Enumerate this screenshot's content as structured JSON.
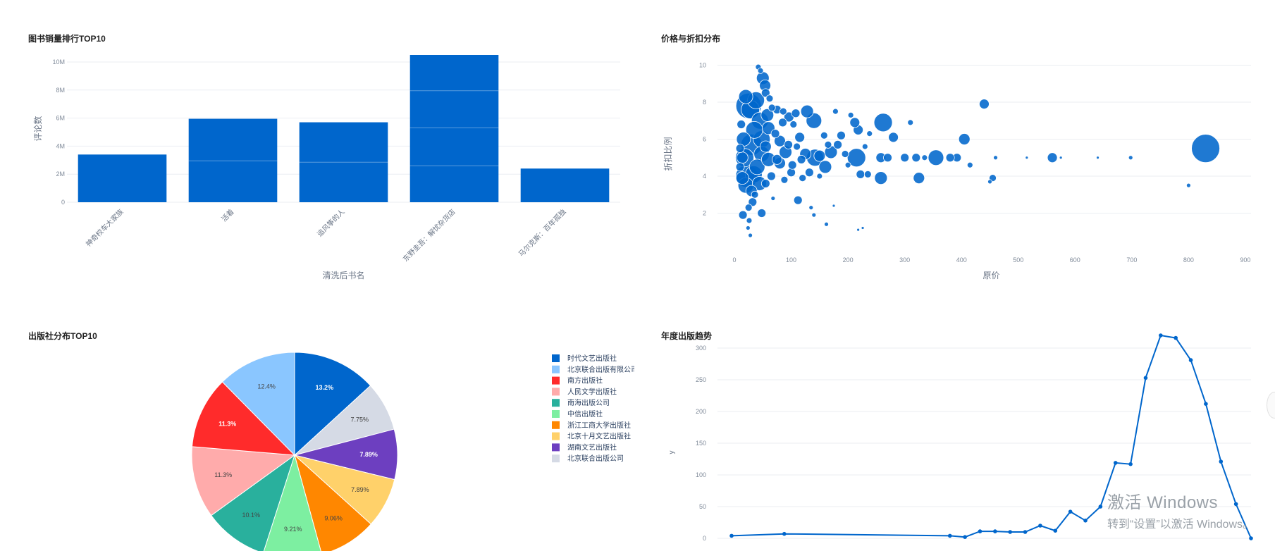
{
  "colors": {
    "primary": "#0066cc",
    "grid": "#ebeef2",
    "axis_text": "#7f8a99"
  },
  "watermark": {
    "line1": "激活 Windows",
    "line2": "转到“设置”以激活 Windows。"
  },
  "chart_data": [
    {
      "id": "top10",
      "type": "bar",
      "title": "图书销量排行TOP10",
      "xlabel": "清洗后书名",
      "ylabel": "评论数",
      "categories": [
        "神奇校车大家族",
        "活着",
        "追风筝的人",
        "东野圭吾：解忧杂货店",
        "马尔克斯：百年孤独"
      ],
      "values": [
        3400000,
        5950000,
        5700000,
        10500000,
        2400000
      ],
      "stack_lines": [
        [],
        [
          2950000
        ],
        [
          2850000
        ],
        [
          7950000,
          5300000,
          2600000
        ],
        []
      ],
      "ylim": [
        0,
        10500000
      ],
      "yticks": [
        0,
        2000000,
        4000000,
        6000000,
        8000000,
        10000000
      ],
      "ytick_labels": [
        "0",
        "2M",
        "4M",
        "6M",
        "8M",
        "10M"
      ],
      "grid": true
    },
    {
      "id": "price",
      "type": "scatter",
      "title": "价格与折扣分布",
      "xlabel": "原价",
      "ylabel": "折扣比例",
      "xlim": [
        -5,
        910
      ],
      "ylim": [
        0,
        10.4
      ],
      "xticks": [
        0,
        100,
        200,
        300,
        400,
        500,
        600,
        700,
        800,
        900
      ],
      "yticks": [
        2,
        4,
        6,
        8,
        10
      ],
      "points": [
        [
          830,
          5.5,
          20
        ],
        [
          440,
          7.9,
          7
        ],
        [
          405,
          6.0,
          8
        ],
        [
          355,
          5.0,
          11
        ],
        [
          325,
          3.9,
          8
        ],
        [
          262,
          6.9,
          13
        ],
        [
          258,
          3.9,
          9
        ],
        [
          258,
          5.0,
          7
        ],
        [
          235,
          4.1,
          5
        ],
        [
          215,
          5.0,
          13
        ],
        [
          222,
          4.1,
          6
        ],
        [
          218,
          6.5,
          7
        ],
        [
          212,
          6.9,
          7
        ],
        [
          140,
          7.0,
          11
        ],
        [
          142,
          5.0,
          12
        ],
        [
          128,
          7.5,
          9
        ],
        [
          125,
          5.2,
          8
        ],
        [
          112,
          2.7,
          6
        ],
        [
          115,
          6.1,
          7
        ],
        [
          90,
          5.3,
          9
        ],
        [
          96,
          7.2,
          7
        ],
        [
          80,
          5.9,
          8
        ],
        [
          80,
          4.7,
          8
        ],
        [
          60,
          6.6,
          9
        ],
        [
          60,
          4.9,
          10
        ],
        [
          58,
          7.3,
          9
        ],
        [
          48,
          6.0,
          12
        ],
        [
          48,
          5.2,
          11
        ],
        [
          45,
          7.0,
          12
        ],
        [
          44,
          3.6,
          10
        ],
        [
          40,
          4.5,
          11
        ],
        [
          38,
          8.1,
          12
        ],
        [
          35,
          6.5,
          12
        ],
        [
          34,
          4.1,
          12
        ],
        [
          30,
          5.7,
          15
        ],
        [
          28,
          7.6,
          13
        ],
        [
          25,
          7.8,
          18
        ],
        [
          22,
          4.0,
          16
        ],
        [
          20,
          3.5,
          11
        ],
        [
          18,
          5.0,
          13
        ],
        [
          16,
          6.0,
          10
        ],
        [
          14,
          5.0,
          8
        ],
        [
          14,
          3.9,
          9
        ],
        [
          50,
          9.3,
          9
        ],
        [
          54,
          8.9,
          8
        ],
        [
          42,
          9.9,
          4
        ],
        [
          46,
          9.7,
          4
        ],
        [
          55,
          8.5,
          6
        ],
        [
          62,
          8.2,
          5
        ],
        [
          15,
          1.9,
          6
        ],
        [
          25,
          2.3,
          5
        ],
        [
          48,
          2.0,
          6
        ],
        [
          26,
          1.6,
          4
        ],
        [
          28,
          0.8,
          3
        ],
        [
          24,
          1.2,
          3
        ],
        [
          55,
          3.6,
          6
        ],
        [
          68,
          2.8,
          3
        ],
        [
          75,
          4.9,
          7
        ],
        [
          100,
          4.2,
          6
        ],
        [
          102,
          4.6,
          6
        ],
        [
          110,
          5.6,
          5
        ],
        [
          165,
          5.7,
          5
        ],
        [
          170,
          5.3,
          9
        ],
        [
          160,
          4.5,
          9
        ],
        [
          182,
          5.7,
          6
        ],
        [
          150,
          4.0,
          4
        ],
        [
          135,
          2.3,
          3
        ],
        [
          140,
          1.9,
          3
        ],
        [
          162,
          1.4,
          3
        ],
        [
          175,
          2.4,
          2
        ],
        [
          178,
          7.5,
          4
        ],
        [
          300,
          5.0,
          6
        ],
        [
          280,
          6.1,
          7
        ],
        [
          310,
          6.9,
          4
        ],
        [
          320,
          5.0,
          6
        ],
        [
          335,
          5.0,
          4
        ],
        [
          392,
          5.0,
          6
        ],
        [
          415,
          4.6,
          4
        ],
        [
          455,
          3.9,
          5
        ],
        [
          450,
          3.7,
          3
        ],
        [
          460,
          5.0,
          3
        ],
        [
          515,
          5.0,
          2
        ],
        [
          560,
          5.0,
          7
        ],
        [
          575,
          5.0,
          2
        ],
        [
          640,
          5.0,
          2
        ],
        [
          698,
          5.0,
          3
        ],
        [
          800,
          3.5,
          3
        ],
        [
          218,
          1.1,
          2
        ],
        [
          226,
          1.2,
          2
        ],
        [
          270,
          5.0,
          6
        ],
        [
          380,
          5.0,
          6
        ],
        [
          120,
          3.9,
          5
        ],
        [
          132,
          4.2,
          6
        ],
        [
          88,
          3.8,
          5
        ],
        [
          72,
          6.3,
          6
        ],
        [
          66,
          7.7,
          5
        ],
        [
          86,
          7.5,
          5
        ],
        [
          104,
          6.8,
          5
        ],
        [
          188,
          6.2,
          6
        ],
        [
          195,
          5.2,
          5
        ],
        [
          200,
          4.6,
          4
        ],
        [
          230,
          5.6,
          4
        ],
        [
          238,
          6.3,
          4
        ],
        [
          205,
          7.3,
          4
        ],
        [
          95,
          5.7,
          6
        ],
        [
          108,
          7.4,
          6
        ],
        [
          30,
          3.2,
          8
        ],
        [
          32,
          2.6,
          6
        ],
        [
          36,
          3.0,
          5
        ],
        [
          12,
          6.8,
          6
        ],
        [
          10,
          5.5,
          6
        ],
        [
          10,
          4.5,
          6
        ],
        [
          85,
          6.9,
          6
        ],
        [
          75,
          7.6,
          6
        ],
        [
          20,
          8.3,
          10
        ],
        [
          65,
          4.0,
          6
        ],
        [
          55,
          5.6,
          8
        ],
        [
          118,
          4.9,
          6
        ],
        [
          150,
          5.1,
          8
        ],
        [
          158,
          6.2,
          5
        ]
      ],
      "grid": true
    },
    {
      "id": "publishers",
      "type": "pie",
      "title": "出版社分布TOP10",
      "labels": [
        "时代文艺出版社",
        "北京联合出版有限公司",
        "南方出版社",
        "人民文学出版社",
        "南海出版公司",
        "中信出版社",
        "浙江工商大学出版社",
        "北京十月文艺出版社",
        "湖南文艺出版社",
        "北京联合出版公司"
      ],
      "values": [
        13.2,
        12.4,
        11.3,
        11.3,
        10.1,
        9.21,
        9.06,
        7.89,
        7.89,
        7.75
      ],
      "value_labels": [
        "13.2%",
        "12.4%",
        "11.3%",
        "11.3%",
        "10.1%",
        "9.21%",
        "9.06%",
        "7.89%",
        "7.89%",
        "7.75%"
      ],
      "colors": [
        "#0066cc",
        "#8ac6ff",
        "#ff2b2b",
        "#ffabab",
        "#29b09d",
        "#7defa1",
        "#ff8700",
        "#ffd16a",
        "#6d3fc0",
        "#d5dae5"
      ],
      "draw_order": [
        0,
        9,
        8,
        7,
        6,
        5,
        4,
        3,
        2,
        1
      ],
      "legend_position": "right"
    },
    {
      "id": "trend",
      "type": "line",
      "title": "年度出版趋势",
      "xlabel": "",
      "ylabel": "y",
      "x": [
        1,
        8,
        30,
        32,
        34,
        36,
        38,
        40,
        42,
        44,
        46,
        48,
        50,
        52,
        54,
        56,
        58,
        60,
        62,
        64,
        66,
        68,
        70
      ],
      "y": [
        4,
        7,
        4,
        2,
        11,
        11,
        10,
        10,
        20,
        12,
        42,
        28,
        50,
        119,
        117,
        253,
        320,
        316,
        281,
        212,
        121,
        54,
        0
      ],
      "ylim": [
        0,
        330
      ],
      "yticks": [
        0,
        50,
        100,
        150,
        200,
        250,
        300
      ],
      "grid": true
    }
  ]
}
